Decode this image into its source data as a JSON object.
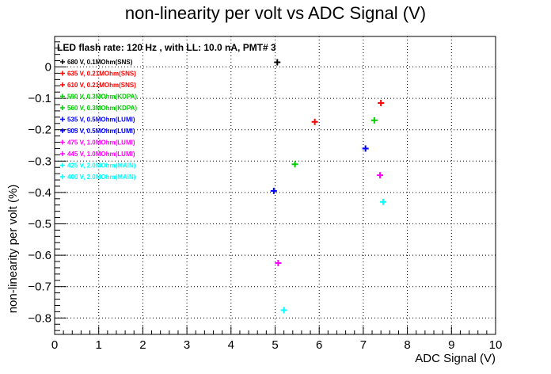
{
  "chart_data": {
    "type": "scatter",
    "title": "non-linearity per volt vs ADC Signal (V)",
    "xlabel": "ADC Signal (V)",
    "ylabel": "non-linearity per volt (%)",
    "annotation": "LED flash rate: 120 Hz , with LL: 10.0 nA, PMT# 3",
    "xlim": [
      0,
      10
    ],
    "ylim": [
      -0.85,
      0.09
    ],
    "xticks": [
      "0",
      "1",
      "2",
      "3",
      "4",
      "5",
      "6",
      "7",
      "8",
      "9",
      "10"
    ],
    "yticks": [
      "0",
      "−0.1",
      "−0.2",
      "−0.3",
      "−0.4",
      "−0.5",
      "−0.6",
      "−0.7",
      "−0.8"
    ],
    "grid": true,
    "legend_position": "top-left",
    "series": [
      {
        "name": "680 V, 0.1MOhm(SNS)",
        "color": "#000000",
        "x": [
          5.05
        ],
        "y": [
          0.015
        ]
      },
      {
        "name": "635 V, 0.21MOhm(SNS)",
        "color": "#ff0000",
        "x": [
          7.4
        ],
        "y": [
          -0.115
        ]
      },
      {
        "name": "610 V, 0.21MOhm(SNS)",
        "color": "#ff0000",
        "x": [
          5.9
        ],
        "y": [
          -0.175
        ]
      },
      {
        "name": "590 V, 0.3MOhm(KDPA)",
        "color": "#00cc00",
        "x": [
          7.25
        ],
        "y": [
          -0.17
        ]
      },
      {
        "name": "560 V, 0.3MOhm(KDPA)",
        "color": "#00cc00",
        "x": [
          5.45
        ],
        "y": [
          -0.31
        ]
      },
      {
        "name": "535 V, 0.5MOhm(LUMI)",
        "color": "#0000ff",
        "x": [
          7.05
        ],
        "y": [
          -0.26
        ]
      },
      {
        "name": "505 V, 0.5MOhm(LUMI)",
        "color": "#0000ff",
        "x": [
          4.97
        ],
        "y": [
          -0.395
        ]
      },
      {
        "name": "475 V, 1.0MOhm(LUMI)",
        "color": "#ff00ff",
        "x": [
          7.38
        ],
        "y": [
          -0.345
        ]
      },
      {
        "name": "445 V, 1.0MOhm(LUMI)",
        "color": "#ff00ff",
        "x": [
          5.07
        ],
        "y": [
          -0.625
        ]
      },
      {
        "name": "425 V, 2.0MOhm(MAIN)",
        "color": "#00ffff",
        "x": [
          7.45
        ],
        "y": [
          -0.43
        ]
      },
      {
        "name": "400 V, 2.0MOhm(MAIN)",
        "color": "#00ffff",
        "x": [
          5.2
        ],
        "y": [
          -0.775
        ]
      }
    ]
  }
}
